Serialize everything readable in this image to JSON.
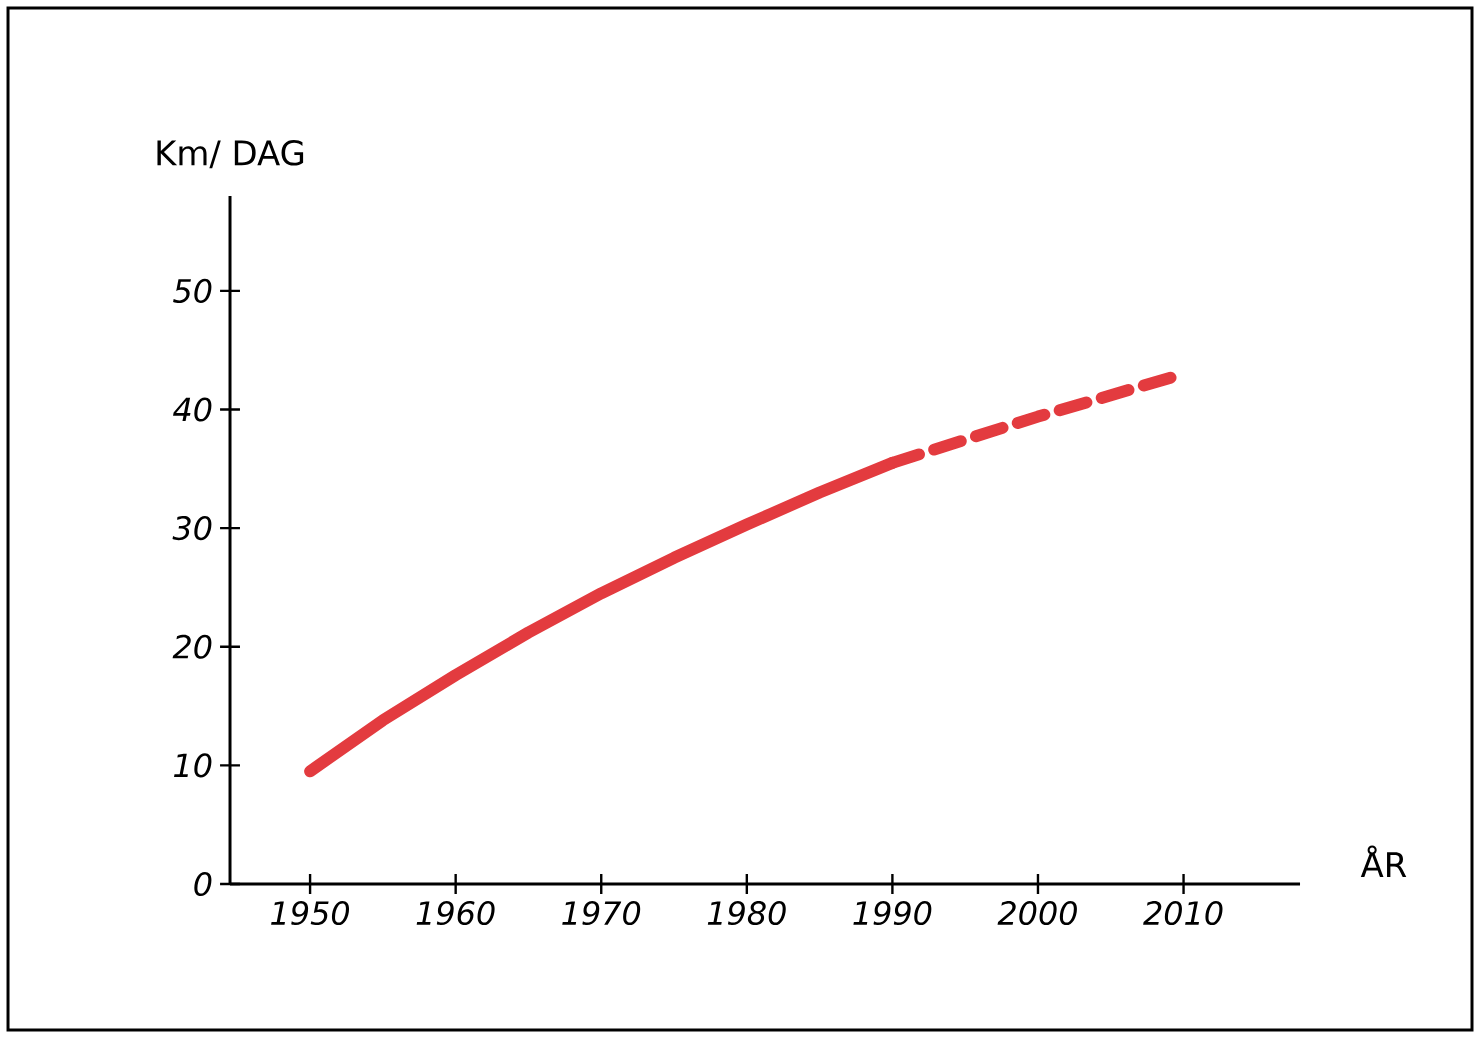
{
  "chart_data": {
    "type": "line",
    "xlabel": "ÅR",
    "ylabel": "Km/ DAG",
    "xlim": [
      1944.5,
      2018
    ],
    "ylim": [
      0,
      58
    ],
    "xticks": [
      1950,
      1960,
      1970,
      1980,
      1990,
      2000,
      2010
    ],
    "yticks": [
      0,
      10,
      20,
      30,
      40,
      50
    ],
    "series": [
      {
        "color": "#e33b3f",
        "line_style": "solid",
        "x": [
          1950,
          1955,
          1960,
          1965,
          1970,
          1975,
          1980,
          1985,
          1990
        ],
        "values": [
          9.5,
          13.8,
          17.6,
          21.2,
          24.5,
          27.5,
          30.3,
          33,
          35.5
        ]
      },
      {
        "color": "#e33b3f",
        "line_style": "dashed",
        "x": [
          1990,
          2000,
          2010
        ],
        "values": [
          35.5,
          39.4,
          43
        ]
      }
    ]
  }
}
